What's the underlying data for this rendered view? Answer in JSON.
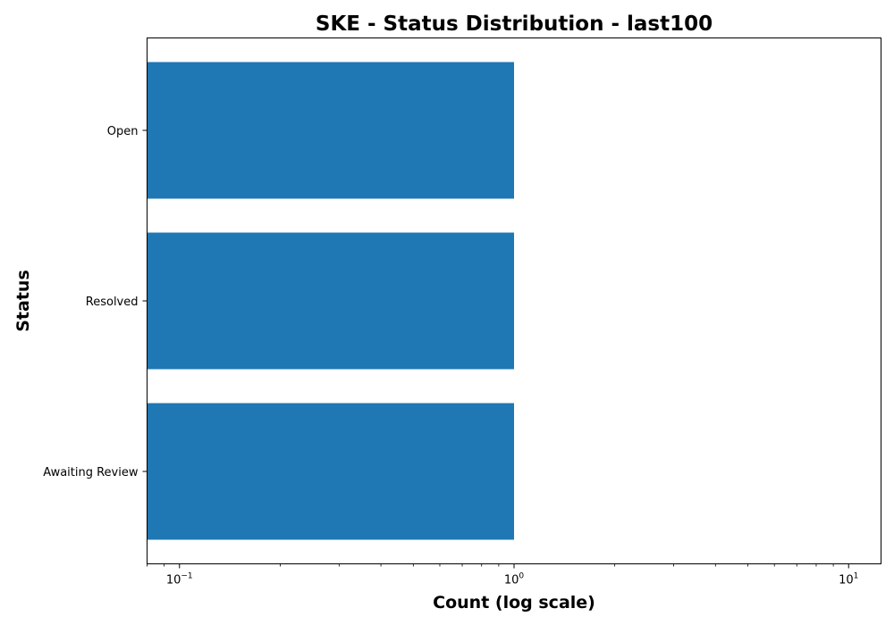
{
  "chart_data": {
    "type": "bar",
    "orientation": "horizontal",
    "title": "SKE - Status Distribution - last100",
    "xlabel": "Count (log scale)",
    "ylabel": "Status",
    "x_scale": "log",
    "xlim": [
      0.08,
      12.5
    ],
    "categories": [
      "Open",
      "Resolved",
      "Awaiting Review"
    ],
    "values": [
      1,
      1,
      1
    ],
    "x_ticks": [
      {
        "value": 0.1,
        "base": "10",
        "exp": "−1"
      },
      {
        "value": 1,
        "base": "10",
        "exp": "0"
      },
      {
        "value": 10,
        "base": "10",
        "exp": "1"
      }
    ],
    "bar_color": "#1f77b4",
    "grid": false,
    "legend": "none"
  }
}
